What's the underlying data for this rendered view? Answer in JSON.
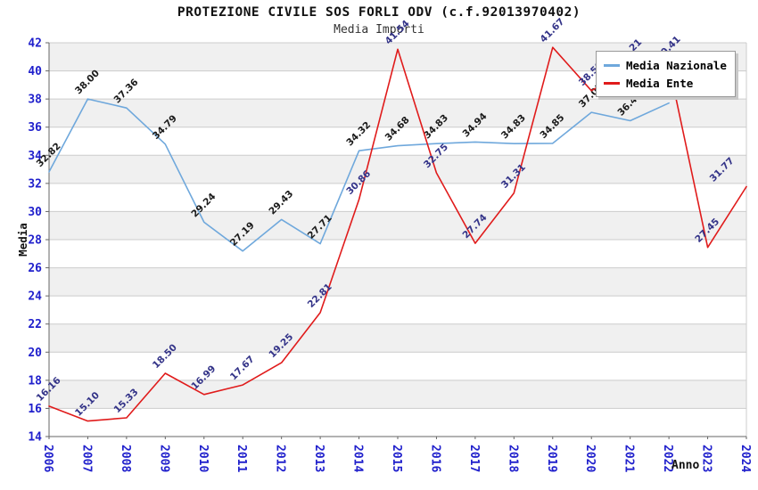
{
  "title": "PROTEZIONE CIVILE SOS FORLI ODV (c.f.92013970402)",
  "subtitle": "Media Importi",
  "chart_data": {
    "type": "line",
    "x": [
      2006,
      2007,
      2008,
      2009,
      2010,
      2011,
      2012,
      2013,
      2014,
      2015,
      2016,
      2017,
      2018,
      2019,
      2020,
      2021,
      2022,
      2023,
      2024
    ],
    "xlabel": "Anno",
    "ylabel": "Media",
    "ylim": [
      14,
      42
    ],
    "ytick_step": 2,
    "grid": true,
    "band_fill": "alternating horizontal stripes",
    "legend_position": "top-right",
    "series": [
      {
        "name": "Media Nazionale",
        "color": "#6FA8DC",
        "label_color": "#1a1a1a",
        "values": [
          32.82,
          38.0,
          37.36,
          34.79,
          29.24,
          27.19,
          29.43,
          27.71,
          34.32,
          34.68,
          34.83,
          34.94,
          34.83,
          34.85,
          37.05,
          36.46,
          37.71,
          null,
          null
        ]
      },
      {
        "name": "Media Ente",
        "color": "#E01B1B",
        "label_color": "#333388",
        "values": [
          16.16,
          15.1,
          15.33,
          18.5,
          16.99,
          17.67,
          19.25,
          22.81,
          30.86,
          41.54,
          32.75,
          27.74,
          31.31,
          41.67,
          38.59,
          40.21,
          40.41,
          27.45,
          31.77
        ]
      }
    ]
  },
  "colors": {
    "band_gray": "#f0f0f0",
    "gridline": "#cccccc",
    "axis": "#666666",
    "tick_label_blue": "#2020CC",
    "title_color": "#111111",
    "subtitle_color": "#333333"
  }
}
